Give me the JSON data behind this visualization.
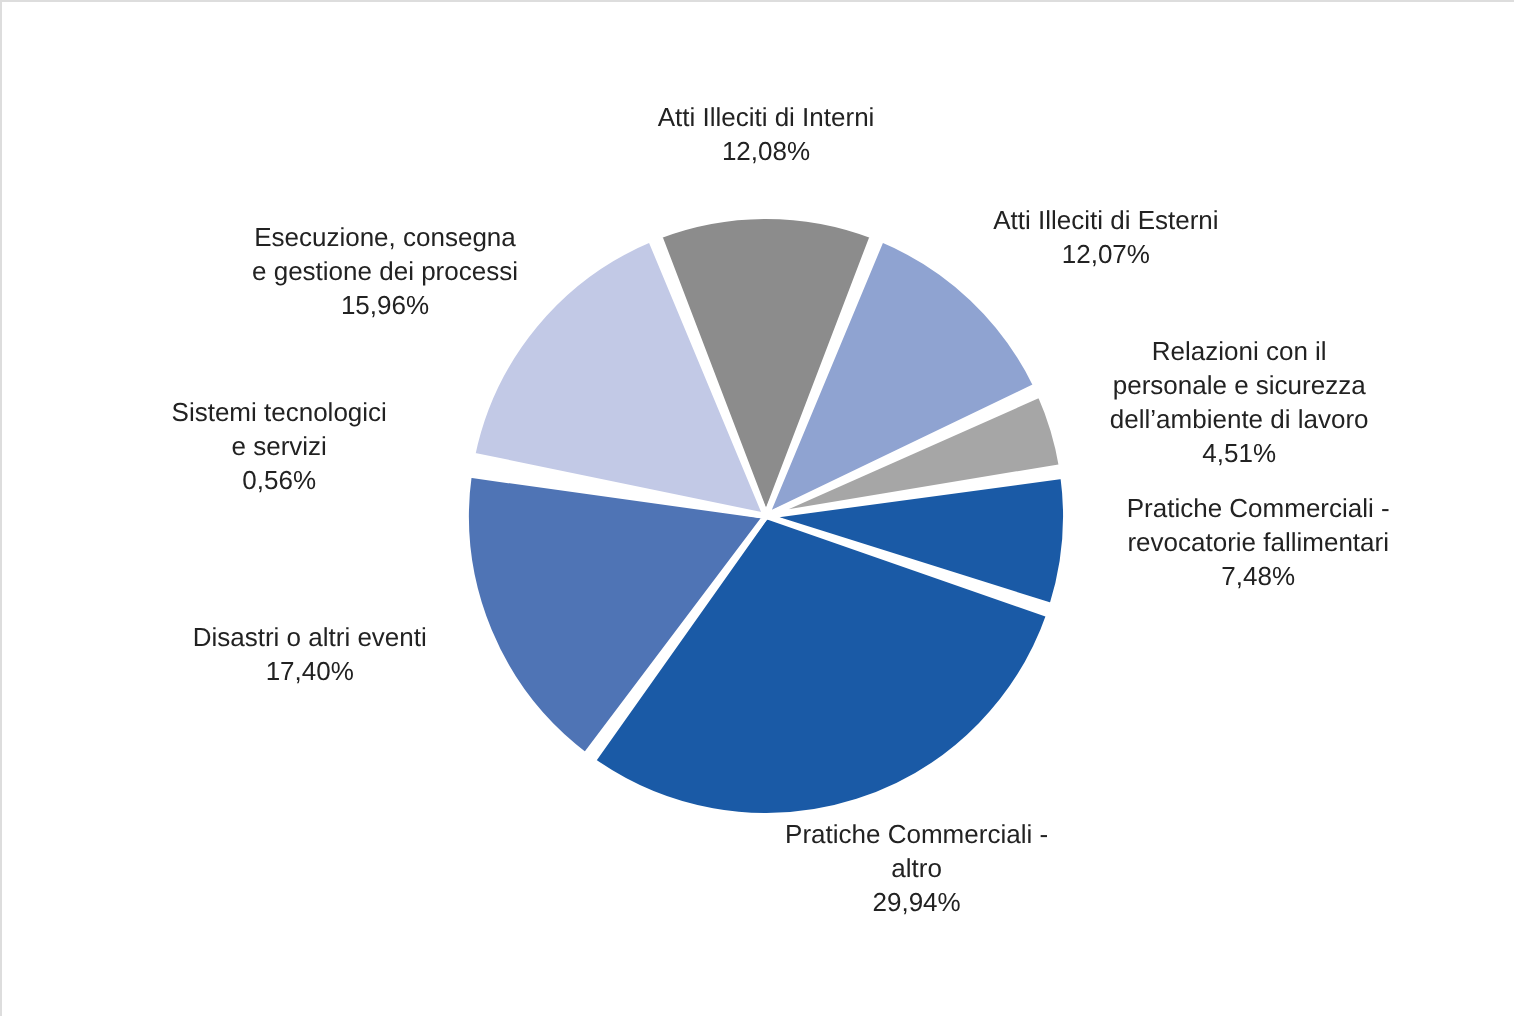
{
  "chart_data": {
    "type": "pie",
    "categories": [
      "Atti Illeciti di Interni",
      "Atti Illeciti di Esterni",
      "Relazioni con il\npersonale e sicurezza\ndell’ambiente di lavoro",
      "Pratiche Commerciali -\nrevocatorie fallimentari",
      "Pratiche Commerciali -\naltro",
      "Disastri o altri eventi",
      "Sistemi tecnologici\ne servizi",
      "Esecuzione, consegna\ne gestione dei processi"
    ],
    "values": [
      12.08,
      12.07,
      4.51,
      7.48,
      29.94,
      17.4,
      0.56,
      15.96
    ],
    "colors": [
      "#8c8c8c",
      "#8fa3d1",
      "#a6a6a6",
      "#1a5aa6",
      "#1a5aa6",
      "#4f74b5",
      "#404040",
      "#c2c9e6"
    ],
    "value_labels": [
      "12,08%",
      "12,07%",
      "4,51%",
      "7,48%",
      "29,94%",
      "17,40%",
      "0,56%",
      "15,96%"
    ]
  }
}
